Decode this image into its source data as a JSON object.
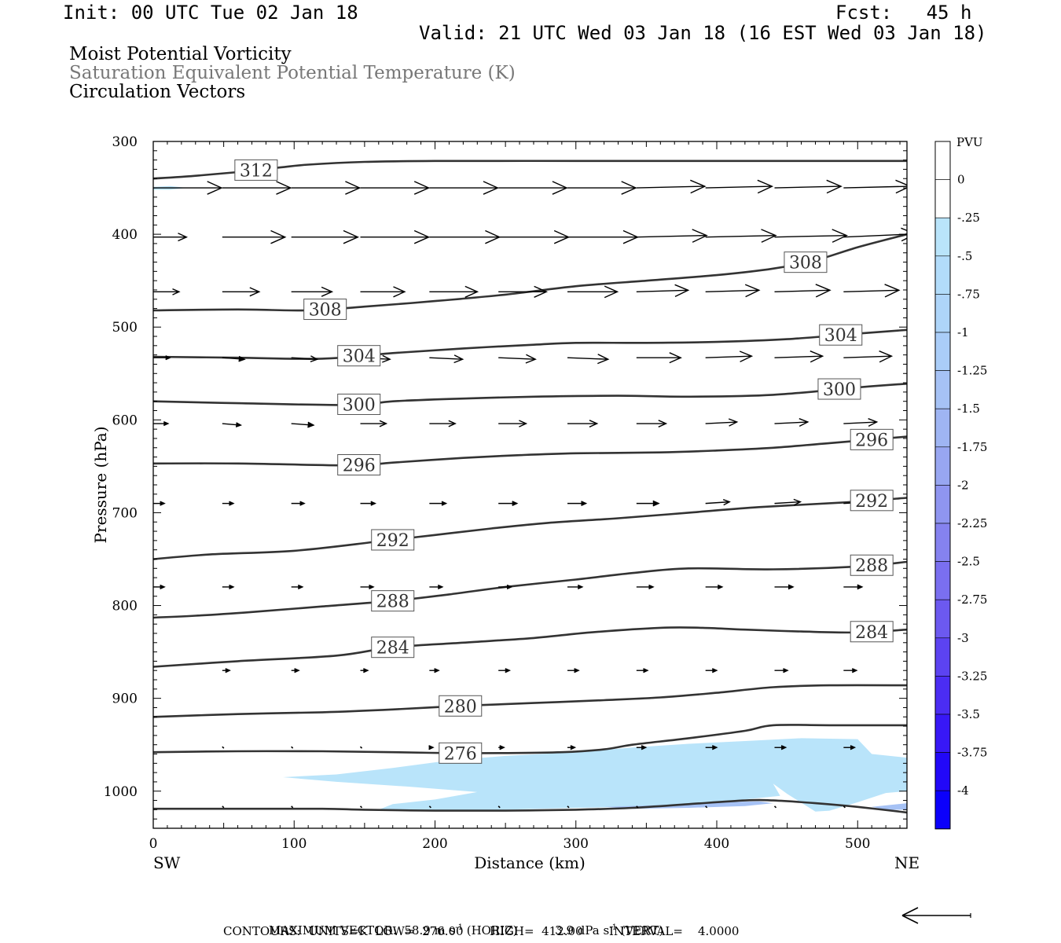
{
  "header": {
    "init": "Init: 00 UTC Tue 02 Jan 18",
    "fcst": "Fcst:   45 h",
    "valid": "Valid: 21 UTC Wed 03 Jan 18 (16 EST Wed 03 Jan 18)"
  },
  "titles": {
    "line1": "Moist Potential Vorticity",
    "line2": "Saturation Equivalent Potential Temperature (K)",
    "line3": "Circulation Vectors"
  },
  "colors": {
    "contour": "#333333",
    "pv_light": "#b9e4fa",
    "pv_mid": "#a6c2f5",
    "vector": "#000000"
  },
  "chart_data": {
    "type": "cross-section",
    "xlabel": "Distance (km)",
    "ylabel": "Pressure (hPa)",
    "xlim": [
      0,
      535
    ],
    "ylim": [
      1040,
      300
    ],
    "x_ticks": [
      0,
      100,
      200,
      300,
      400,
      500
    ],
    "y_ticks": [
      300,
      400,
      500,
      600,
      700,
      800,
      900,
      1000
    ],
    "left_endpoint": "SW",
    "right_endpoint": "NE",
    "colorbar": {
      "unit": "PVU",
      "labels": [
        "0",
        "-.25",
        "-.5",
        "-.75",
        "-1",
        "-1.25",
        "-1.5",
        "-1.75",
        "-2",
        "-2.25",
        "-2.5",
        "-2.75",
        "-3",
        "-3.25",
        "-3.5",
        "-3.75",
        "-4"
      ],
      "colors": [
        "#ffffff",
        "#ffffff",
        "#b9e4fa",
        "#b2dcfa",
        "#aed5f9",
        "#aacdf8",
        "#a6c2f5",
        "#9fb5f3",
        "#98a6f1",
        "#8f95f0",
        "#8582ef",
        "#7a6ff0",
        "#6c59f0",
        "#5c43f1",
        "#4b2df3",
        "#3818f6",
        "#2208f8",
        "#0b00fb"
      ]
    },
    "theta_contours": [
      {
        "level": 312,
        "points": [
          [
            0,
            340
          ],
          [
            30,
            337
          ],
          [
            60,
            333
          ],
          [
            90,
            328
          ],
          [
            110,
            325
          ],
          [
            150,
            322
          ],
          [
            200,
            321
          ],
          [
            300,
            321
          ],
          [
            400,
            321
          ],
          [
            535,
            321
          ]
        ],
        "label_x": 73
      },
      {
        "level": 308,
        "points": [
          [
            0,
            482
          ],
          [
            60,
            481
          ],
          [
            110,
            482
          ],
          [
            150,
            478
          ],
          [
            200,
            472
          ],
          [
            250,
            465
          ],
          [
            300,
            456
          ],
          [
            350,
            450
          ],
          [
            400,
            444
          ],
          [
            440,
            437
          ],
          [
            470,
            428
          ],
          [
            500,
            414
          ],
          [
            535,
            400
          ]
        ],
        "label_x": 122,
        "label2_x": 463
      },
      {
        "level": 304,
        "points": [
          [
            0,
            532
          ],
          [
            60,
            533
          ],
          [
            120,
            534
          ],
          [
            170,
            528
          ],
          [
            220,
            523
          ],
          [
            270,
            519
          ],
          [
            300,
            517
          ],
          [
            350,
            517
          ],
          [
            400,
            516
          ],
          [
            450,
            513
          ],
          [
            500,
            507
          ],
          [
            535,
            503
          ]
        ],
        "label_x": 146,
        "label2_x": 488
      },
      {
        "level": 300,
        "points": [
          [
            0,
            580
          ],
          [
            60,
            582
          ],
          [
            140,
            584
          ],
          [
            170,
            580
          ],
          [
            220,
            577
          ],
          [
            270,
            575
          ],
          [
            330,
            574
          ],
          [
            380,
            575
          ],
          [
            440,
            573
          ],
          [
            500,
            565
          ],
          [
            535,
            561
          ]
        ],
        "label_x": 146,
        "label2_x": 487
      },
      {
        "level": 296,
        "points": [
          [
            0,
            647
          ],
          [
            60,
            647
          ],
          [
            140,
            649
          ],
          [
            170,
            646
          ],
          [
            220,
            641
          ],
          [
            260,
            638
          ],
          [
            300,
            636
          ],
          [
            360,
            635
          ],
          [
            400,
            633
          ],
          [
            440,
            630
          ],
          [
            480,
            625
          ],
          [
            535,
            618
          ]
        ],
        "label_x": 146,
        "label2_x": 510
      },
      {
        "level": 292,
        "points": [
          [
            0,
            750
          ],
          [
            40,
            745
          ],
          [
            100,
            741
          ],
          [
            160,
            731
          ],
          [
            200,
            724
          ],
          [
            240,
            717
          ],
          [
            280,
            711
          ],
          [
            330,
            706
          ],
          [
            380,
            700
          ],
          [
            430,
            694
          ],
          [
            490,
            689
          ],
          [
            535,
            684
          ]
        ],
        "label_x": 170,
        "label2_x": 510
      },
      {
        "level": 288,
        "points": [
          [
            0,
            813
          ],
          [
            30,
            811
          ],
          [
            70,
            807
          ],
          [
            120,
            801
          ],
          [
            170,
            795
          ],
          [
            210,
            788
          ],
          [
            250,
            780
          ],
          [
            300,
            772
          ],
          [
            340,
            765
          ],
          [
            380,
            760
          ],
          [
            440,
            761
          ],
          [
            500,
            758
          ],
          [
            535,
            753
          ]
        ],
        "label_x": 170,
        "label2_x": 510
      },
      {
        "level": 284,
        "points": [
          [
            0,
            866
          ],
          [
            60,
            860
          ],
          [
            130,
            854
          ],
          [
            170,
            845
          ],
          [
            220,
            840
          ],
          [
            270,
            835
          ],
          [
            310,
            829
          ],
          [
            360,
            824
          ],
          [
            390,
            824
          ],
          [
            420,
            826
          ],
          [
            460,
            828
          ],
          [
            500,
            829
          ],
          [
            535,
            826
          ]
        ],
        "label_x": 170,
        "label2_x": 510
      },
      {
        "level": 280,
        "points": [
          [
            0,
            920
          ],
          [
            60,
            917
          ],
          [
            120,
            915
          ],
          [
            170,
            912
          ],
          [
            220,
            908
          ],
          [
            270,
            905
          ],
          [
            320,
            902
          ],
          [
            360,
            899
          ],
          [
            400,
            894
          ],
          [
            440,
            888
          ],
          [
            480,
            886
          ],
          [
            535,
            886
          ]
        ],
        "label_x": 218
      },
      {
        "level": 276,
        "points": [
          [
            0,
            958
          ],
          [
            60,
            957
          ],
          [
            120,
            957
          ],
          [
            170,
            958
          ],
          [
            210,
            959
          ],
          [
            250,
            959
          ],
          [
            290,
            958
          ],
          [
            320,
            955
          ],
          [
            340,
            950
          ],
          [
            380,
            943
          ],
          [
            420,
            935
          ],
          [
            440,
            929
          ],
          [
            480,
            929
          ],
          [
            535,
            929
          ]
        ],
        "label_x": 218
      },
      {
        "level": null,
        "points": [
          [
            0,
            1019
          ],
          [
            60,
            1019
          ],
          [
            120,
            1019
          ],
          [
            150,
            1020
          ],
          [
            200,
            1021
          ],
          [
            250,
            1021
          ],
          [
            300,
            1020
          ],
          [
            340,
            1018
          ],
          [
            380,
            1014
          ],
          [
            420,
            1010
          ],
          [
            440,
            1010
          ],
          [
            470,
            1013
          ],
          [
            500,
            1017
          ],
          [
            535,
            1023
          ]
        ]
      }
    ],
    "pv_regions": [
      {
        "value": "-0.25 to -0.5",
        "points": [
          [
            92,
            985
          ],
          [
            130,
            982
          ],
          [
            170,
            975
          ],
          [
            210,
            967
          ],
          [
            250,
            962
          ],
          [
            300,
            958
          ],
          [
            340,
            953
          ],
          [
            380,
            949
          ],
          [
            420,
            946
          ],
          [
            460,
            943
          ],
          [
            500,
            944
          ],
          [
            510,
            960
          ],
          [
            535,
            964
          ],
          [
            535,
            1000
          ],
          [
            520,
            1002
          ],
          [
            500,
            1012
          ],
          [
            480,
            1021
          ],
          [
            470,
            1022
          ],
          [
            450,
            1003
          ],
          [
            440,
            992
          ],
          [
            445,
            1005
          ],
          [
            400,
            1012
          ],
          [
            340,
            1017
          ],
          [
            300,
            1018
          ],
          [
            250,
            1020
          ],
          [
            200,
            1021
          ],
          [
            160,
            1020
          ],
          [
            170,
            1014
          ],
          [
            200,
            1009
          ],
          [
            230,
            1001
          ],
          [
            180,
            995
          ],
          [
            130,
            990
          ]
        ]
      },
      {
        "value": "-0.25 to -0.5",
        "points": [
          [
            0,
            1010
          ],
          [
            0,
            1011
          ],
          [
            0,
            1012
          ]
        ]
      },
      {
        "value": "-0.5 to -0.75",
        "points": [
          [
            320,
            1017
          ],
          [
            360,
            1015
          ],
          [
            400,
            1012
          ],
          [
            430,
            1011
          ],
          [
            440,
            1013
          ],
          [
            420,
            1016
          ],
          [
            380,
            1018
          ],
          [
            340,
            1019
          ]
        ]
      },
      {
        "value": "-0.5 to -0.75",
        "points": [
          [
            510,
            1017
          ],
          [
            535,
            1013
          ],
          [
            535,
            1020
          ],
          [
            520,
            1020
          ]
        ]
      }
    ],
    "upper_left_pv": {
      "value": "-0.25 to -0.5",
      "points": [
        [
          0,
          349
        ],
        [
          12,
          348
        ],
        [
          24,
          350
        ],
        [
          12,
          352
        ],
        [
          0,
          352
        ]
      ]
    },
    "vectors": [
      {
        "p": 350,
        "x": [
          0,
          49,
          98,
          147,
          196,
          245,
          294,
          343,
          392,
          441,
          490
        ],
        "u": [
          37,
          37,
          37,
          37,
          37,
          37,
          37,
          37,
          36,
          36,
          36
        ],
        "w": [
          0,
          0,
          0,
          0,
          0,
          0,
          0,
          -1,
          -1,
          -1,
          -1
        ]
      },
      {
        "p": 403,
        "x": [
          0,
          49,
          98,
          147,
          196,
          245,
          294,
          343,
          392,
          441,
          490
        ],
        "u": [
          18,
          34,
          36,
          37,
          38,
          38,
          38,
          38,
          38,
          39,
          39
        ],
        "w": [
          0,
          0,
          0,
          0,
          0,
          0,
          0,
          -1,
          -1,
          -1,
          -2
        ]
      },
      {
        "p": 462,
        "x": [
          0,
          49,
          98,
          147,
          196,
          245,
          294,
          343,
          392,
          441,
          490
        ],
        "u": [
          14,
          20,
          22,
          24,
          26,
          26,
          27,
          28,
          29,
          30,
          30
        ],
        "w": [
          0,
          0,
          0,
          0,
          0,
          0,
          0,
          -1,
          -1,
          -1,
          -1
        ]
      },
      {
        "p": 533,
        "x": [
          0,
          49,
          98,
          147,
          196,
          245,
          294,
          343,
          392,
          441,
          490
        ],
        "u": [
          9,
          12,
          14,
          16,
          18,
          20,
          22,
          24,
          25,
          26,
          26
        ],
        "w": [
          0,
          1,
          1,
          1,
          1,
          1,
          1,
          0,
          -1,
          -1,
          -1
        ]
      },
      {
        "p": 604,
        "x": [
          0,
          49,
          98,
          147,
          196,
          245,
          294,
          343,
          392,
          441,
          490
        ],
        "u": [
          8,
          10,
          12,
          14,
          14,
          15,
          16,
          16,
          17,
          18,
          18
        ],
        "w": [
          0,
          1,
          1,
          0,
          0,
          0,
          0,
          0,
          -1,
          -1,
          -1
        ]
      },
      {
        "p": 690,
        "x": [
          0,
          49,
          98,
          147,
          196,
          245,
          294,
          343,
          392,
          441,
          490
        ],
        "u": [
          6,
          6,
          7,
          8,
          9,
          10,
          10,
          12,
          13,
          14,
          14
        ],
        "w": [
          0,
          0,
          0,
          0,
          0,
          0,
          0,
          0,
          -1,
          -1,
          -1
        ]
      },
      {
        "p": 780,
        "x": [
          0,
          49,
          98,
          147,
          196,
          245,
          294,
          343,
          392,
          441,
          490
        ],
        "u": [
          6,
          6,
          6,
          7,
          7,
          7,
          8,
          9,
          9,
          10,
          10
        ],
        "w": [
          0,
          0,
          0,
          0,
          0,
          0,
          0,
          0,
          0,
          0,
          0
        ]
      },
      {
        "p": 870,
        "x": [
          49,
          98,
          147,
          196,
          245,
          294,
          343,
          392,
          441,
          490
        ],
        "u": [
          4,
          4,
          4,
          5,
          6,
          6,
          6,
          6,
          7,
          7
        ],
        "w": [
          0,
          0,
          0,
          0,
          0,
          0,
          0,
          0,
          0,
          0
        ]
      },
      {
        "p": 953,
        "x": [
          49,
          98,
          147,
          196,
          245,
          294,
          343,
          392,
          441,
          490
        ],
        "u": [
          1,
          1,
          1,
          2,
          3,
          4,
          5,
          6,
          6,
          6
        ],
        "w": [
          0,
          0,
          0,
          0,
          0,
          0,
          0,
          0,
          0,
          0
        ]
      },
      {
        "p": 1017,
        "x": [
          49,
          98,
          147,
          196,
          245,
          294,
          343,
          392,
          441,
          490
        ],
        "u": [
          1,
          1,
          1,
          1,
          1,
          1,
          1,
          1,
          1,
          1
        ],
        "w": [
          0,
          0,
          0,
          0,
          0,
          0,
          0,
          0,
          0,
          0
        ]
      }
    ]
  },
  "footer": {
    "line1": "MAXIMUM VECTOR:  58.9 m s",
    "line1_sup": "-1",
    "line1_mid": " (HORIZ)          3.9 dPa s",
    "line1_sup2": "-1",
    "line1_end": " (VERT)",
    "line2": "CONTOURS:  UNITS=K  LOW=  276.00       HIGH=  412.00       INTERVAL=    4.0000"
  }
}
